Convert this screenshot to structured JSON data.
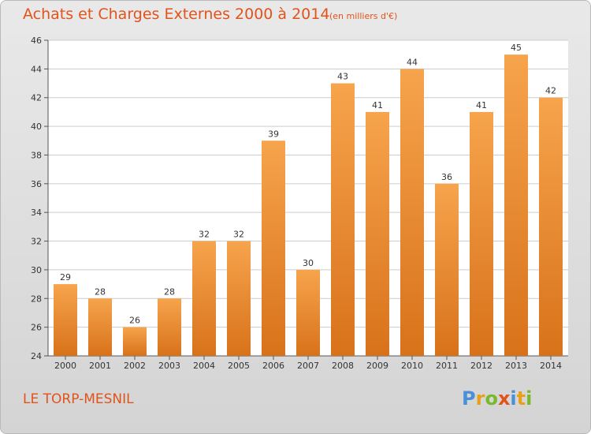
{
  "title": "Achats et Charges Externes 2000 à 2014",
  "subtitle": "(en milliers d'€)",
  "commune": "LE TORP-MESNIL",
  "logo": {
    "text": "Proxiti",
    "letters": [
      {
        "char": "P",
        "color": "#4a90d9"
      },
      {
        "char": "r",
        "color": "#e8a01b"
      },
      {
        "char": "o",
        "color": "#7ab82e"
      },
      {
        "char": "x",
        "color": "#e2531c"
      },
      {
        "char": "i",
        "color": "#4a90d9"
      },
      {
        "char": "t",
        "color": "#e8a01b"
      },
      {
        "char": "i",
        "color": "#7ab82e"
      }
    ]
  },
  "colors": {
    "bar_top": "#f6a44d",
    "bar_bottom": "#d8721a",
    "title": "#e2531c",
    "grid": "#cccccc",
    "axis": "#555555",
    "text": "#333333"
  },
  "chart_data": {
    "type": "bar",
    "categories": [
      "2000",
      "2001",
      "2002",
      "2003",
      "2004",
      "2005",
      "2006",
      "2007",
      "2008",
      "2009",
      "2010",
      "2011",
      "2012",
      "2013",
      "2014"
    ],
    "values": [
      29,
      28,
      26,
      28,
      32,
      32,
      39,
      30,
      43,
      41,
      44,
      36,
      41,
      45,
      42
    ],
    "title": "Achats et Charges Externes 2000 à 2014",
    "xlabel": "",
    "ylabel": "",
    "ylim": [
      24,
      46
    ],
    "yticks": [
      24,
      26,
      28,
      30,
      32,
      34,
      36,
      38,
      40,
      42,
      44,
      46
    ],
    "grid": true
  }
}
